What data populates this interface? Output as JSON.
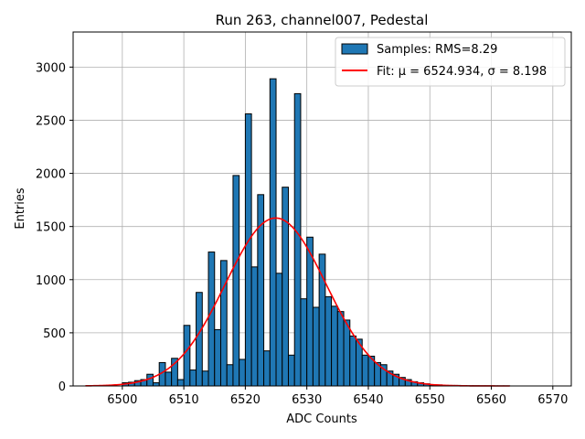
{
  "chart_data": {
    "type": "bar",
    "title": "Run 263, channel007, Pedestal",
    "xlabel": "ADC Counts",
    "ylabel": "Entries",
    "xlim": [
      6492,
      6573
    ],
    "ylim": [
      0,
      3330
    ],
    "xticks": [
      6500,
      6510,
      6520,
      6530,
      6540,
      6550,
      6560,
      6570
    ],
    "yticks": [
      0,
      500,
      1000,
      1500,
      2000,
      2500,
      3000
    ],
    "grid": true,
    "legend_position": "top-right",
    "histogram": {
      "name": "Samples: RMS=8.29",
      "color": "#1f77b4",
      "bin_start": 6500,
      "bin_width": 1,
      "counts": [
        30,
        35,
        50,
        60,
        110,
        30,
        220,
        130,
        260,
        60,
        570,
        150,
        880,
        140,
        1260,
        530,
        1180,
        200,
        1980,
        250,
        2560,
        1120,
        1800,
        330,
        2890,
        1060,
        1870,
        290,
        2750,
        820,
        1400,
        740,
        1240,
        840,
        750,
        700,
        620,
        470,
        440,
        290,
        280,
        220,
        200,
        140,
        110,
        80,
        60,
        40,
        30,
        20,
        10,
        10,
        5,
        5,
        5,
        3,
        2,
        2,
        1,
        1,
        1,
        1,
        1
      ]
    },
    "fit": {
      "name": "Fit: μ = 6524.934, σ = 8.198",
      "color": "#ff0000",
      "mu": 6524.934,
      "sigma": 8.198,
      "amplitude": 1580,
      "x_range": [
        6494,
        6563
      ]
    }
  }
}
